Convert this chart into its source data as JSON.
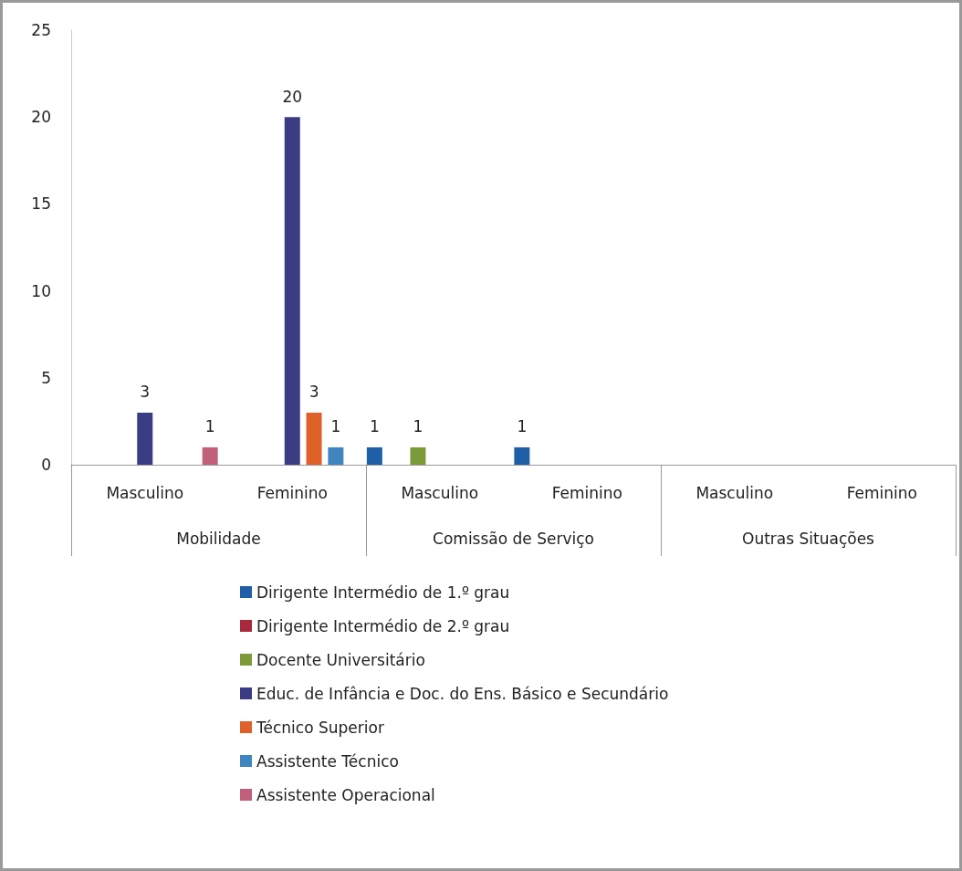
{
  "chart_data": {
    "type": "bar",
    "categories": [
      "Masculino",
      "Feminino",
      "Masculino",
      "Feminino",
      "Masculino",
      "Feminino"
    ],
    "annotations": [
      "Mobilidade",
      "Comissão de Serviço",
      "Outras Situações"
    ],
    "series": [
      {
        "name": "Dirigente Intermédio de 1.º grau",
        "color": "#1f5fa8",
        "values": [
          null,
          null,
          1,
          1,
          null,
          null
        ]
      },
      {
        "name": "Dirigente Intermédio de 2.º grau",
        "color": "#a8283c",
        "values": [
          null,
          null,
          null,
          null,
          null,
          null
        ]
      },
      {
        "name": "Docente Universitário",
        "color": "#7c9a3a",
        "values": [
          null,
          null,
          1,
          null,
          null,
          null
        ]
      },
      {
        "name": "Educ. de Infância e Doc. do Ens. Básico e Secundário",
        "color": "#3c3c84",
        "values": [
          3,
          20,
          null,
          null,
          null,
          null
        ]
      },
      {
        "name": "Técnico Superior",
        "color": "#e0602a",
        "values": [
          null,
          3,
          null,
          null,
          null,
          null
        ]
      },
      {
        "name": "Assistente Técnico",
        "color": "#3f86c0",
        "values": [
          null,
          1,
          null,
          null,
          null,
          null
        ]
      },
      {
        "name": "Assistente Operacional",
        "color": "#c0607a",
        "values": [
          1,
          null,
          null,
          null,
          null,
          null
        ]
      }
    ],
    "ylim": [
      0,
      25
    ],
    "yticks": [
      0,
      5,
      10,
      15,
      20,
      25
    ],
    "data_labels": true,
    "grid": false,
    "legend": "bottom"
  }
}
